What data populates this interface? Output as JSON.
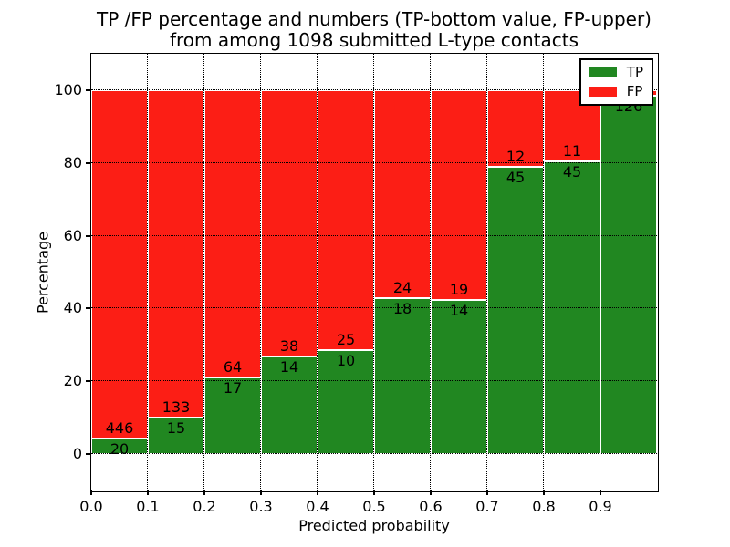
{
  "chart": {
    "title_line1": "TP /FP percentage and numbers (TP-bottom value, FP-upper)",
    "title_line2": "from among 1098 submitted L-type contacts"
  },
  "chart_data": {
    "type": "bar",
    "subtype": "stacked-percentage",
    "title": "TP /FP percentage and numbers (TP-bottom value, FP-upper) from among 1098 submitted L-type contacts",
    "total_contacts": 1098,
    "xlabel": "Predicted probability",
    "ylabel": "Percentage",
    "xlim": [
      0.0,
      1.0
    ],
    "ylim": [
      -10,
      110
    ],
    "x_ticks": [
      "0.0",
      "0.1",
      "0.2",
      "0.3",
      "0.4",
      "0.5",
      "0.6",
      "0.7",
      "0.8",
      "0.9"
    ],
    "y_ticks": [
      "0",
      "20",
      "40",
      "60",
      "80",
      "100"
    ],
    "bin_width": 0.1,
    "grid": "dotted",
    "legend_position": "upper right",
    "series": [
      {
        "name": "TP",
        "color": "#218721"
      },
      {
        "name": "FP",
        "color": "#fc1e15"
      }
    ],
    "bins": [
      {
        "x_start": 0.0,
        "tp": 20,
        "fp": 446,
        "tp_pct": 4.3
      },
      {
        "x_start": 0.1,
        "tp": 15,
        "fp": 133,
        "tp_pct": 10.1
      },
      {
        "x_start": 0.2,
        "tp": 17,
        "fp": 64,
        "tp_pct": 21.0
      },
      {
        "x_start": 0.3,
        "tp": 14,
        "fp": 38,
        "tp_pct": 26.9
      },
      {
        "x_start": 0.4,
        "tp": 10,
        "fp": 25,
        "tp_pct": 28.6
      },
      {
        "x_start": 0.5,
        "tp": 18,
        "fp": 24,
        "tp_pct": 42.9
      },
      {
        "x_start": 0.6,
        "tp": 14,
        "fp": 19,
        "tp_pct": 42.4
      },
      {
        "x_start": 0.7,
        "tp": 45,
        "fp": 12,
        "tp_pct": 78.9
      },
      {
        "x_start": 0.8,
        "tp": 45,
        "fp": 11,
        "tp_pct": 80.4
      },
      {
        "x_start": 0.9,
        "tp": 126,
        "fp": 2,
        "tp_pct": 98.4,
        "fp_label_hidden": true
      }
    ]
  }
}
